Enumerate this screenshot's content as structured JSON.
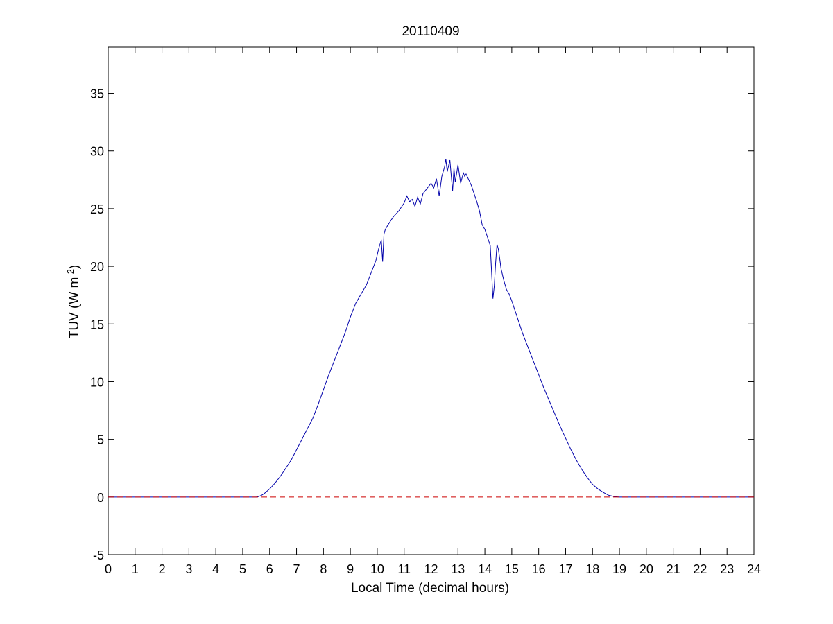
{
  "chart_data": {
    "type": "line",
    "title": "20110409",
    "xlabel": "Local Time (decimal hours)",
    "ylabel": {
      "main": "TUV (W m",
      "superscript": "-2",
      "close": ")"
    },
    "xlim": [
      0,
      24
    ],
    "ylim": [
      -5,
      39
    ],
    "xticks": [
      0,
      1,
      2,
      3,
      4,
      5,
      6,
      7,
      8,
      9,
      10,
      11,
      12,
      13,
      14,
      15,
      16,
      17,
      18,
      19,
      20,
      21,
      22,
      23,
      24
    ],
    "yticks": [
      -5,
      0,
      5,
      10,
      15,
      20,
      25,
      30,
      35
    ],
    "grid": false,
    "legend": "none",
    "series": [
      {
        "color": "#0000aa",
        "style": "solid",
        "x": [
          0,
          5.0,
          5.5,
          5.6,
          5.7,
          5.8,
          5.9,
          6.0,
          6.2,
          6.4,
          6.6,
          6.8,
          7.0,
          7.2,
          7.4,
          7.6,
          7.8,
          8.0,
          8.2,
          8.4,
          8.6,
          8.8,
          9.0,
          9.1,
          9.2,
          9.4,
          9.6,
          9.8,
          9.95,
          10.05,
          10.15,
          10.2,
          10.25,
          10.3,
          10.4,
          10.6,
          10.8,
          11.0,
          11.1,
          11.2,
          11.3,
          11.4,
          11.5,
          11.6,
          11.7,
          11.8,
          11.9,
          12.0,
          12.1,
          12.2,
          12.3,
          12.4,
          12.5,
          12.55,
          12.6,
          12.7,
          12.8,
          12.85,
          12.9,
          13.0,
          13.1,
          13.2,
          13.25,
          13.3,
          13.4,
          13.5,
          13.6,
          13.7,
          13.8,
          13.9,
          14.0,
          14.1,
          14.2,
          14.25,
          14.3,
          14.35,
          14.4,
          14.45,
          14.5,
          14.55,
          14.6,
          14.7,
          14.8,
          14.9,
          15.0,
          15.2,
          15.4,
          15.6,
          15.8,
          16.0,
          16.2,
          16.4,
          16.6,
          16.8,
          17.0,
          17.2,
          17.4,
          17.6,
          17.8,
          18.0,
          18.2,
          18.4,
          18.6,
          18.8,
          18.9,
          19.0,
          19.2,
          20.0,
          24.0
        ],
        "y": [
          0,
          0,
          0,
          0.05,
          0.15,
          0.3,
          0.5,
          0.7,
          1.2,
          1.8,
          2.5,
          3.2,
          4.1,
          5.0,
          5.9,
          6.8,
          8.0,
          9.3,
          10.6,
          11.8,
          13.0,
          14.2,
          15.6,
          16.2,
          16.8,
          17.6,
          18.4,
          19.6,
          20.5,
          21.5,
          22.3,
          20.4,
          22.8,
          23.2,
          23.6,
          24.3,
          24.8,
          25.5,
          26.1,
          25.6,
          25.8,
          25.2,
          26.0,
          25.4,
          26.3,
          26.6,
          26.9,
          27.2,
          26.8,
          27.6,
          26.1,
          27.8,
          28.6,
          29.3,
          28.2,
          29.2,
          26.5,
          28.5,
          27.3,
          28.8,
          27.2,
          28.1,
          27.8,
          28.0,
          27.5,
          27.0,
          26.3,
          25.6,
          24.8,
          23.6,
          23.2,
          22.5,
          21.8,
          19.5,
          17.2,
          18.3,
          20.3,
          21.9,
          21.5,
          20.7,
          19.8,
          18.8,
          18.0,
          17.6,
          17.0,
          15.6,
          14.2,
          13.0,
          11.8,
          10.6,
          9.4,
          8.3,
          7.2,
          6.1,
          5.1,
          4.1,
          3.2,
          2.4,
          1.7,
          1.1,
          0.7,
          0.4,
          0.15,
          0.05,
          0.02,
          0,
          0,
          0,
          0
        ]
      },
      {
        "color": "#cc0000",
        "style": "dashed",
        "x": [
          0,
          24
        ],
        "y": [
          0,
          0
        ]
      }
    ]
  }
}
